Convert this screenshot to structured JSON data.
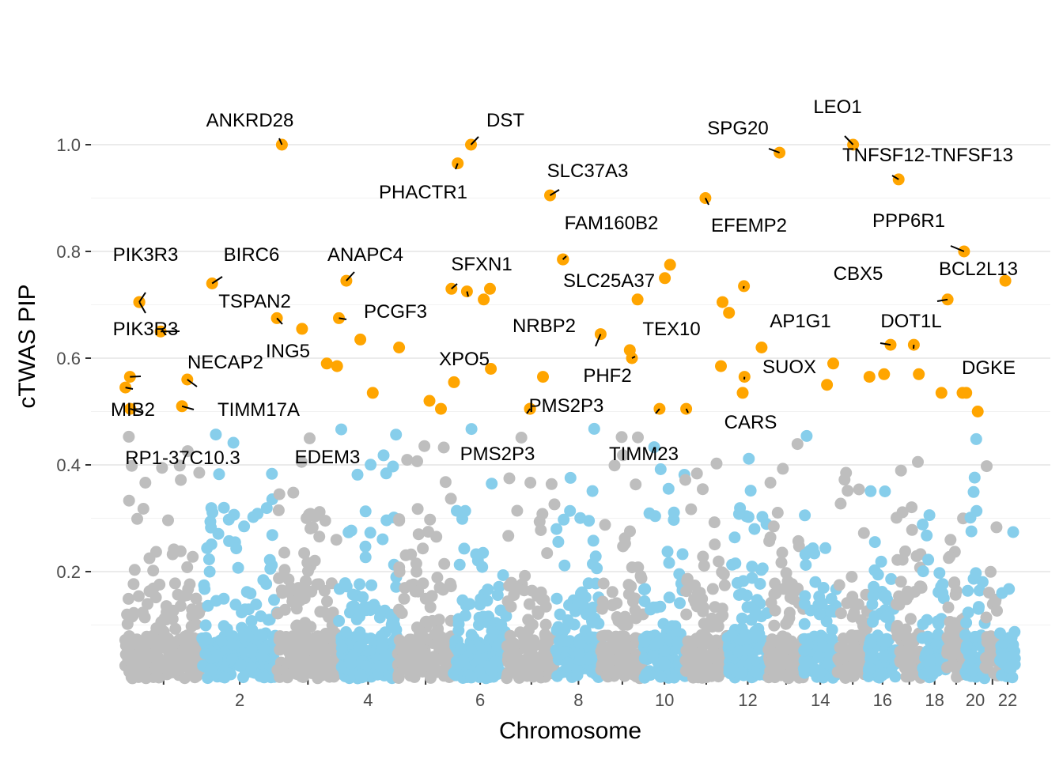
{
  "chart_data": {
    "type": "scatter",
    "title": "",
    "xlabel": "Chromosome",
    "ylabel": "cTWAS PIP",
    "ylim": [
      0,
      1.05
    ],
    "yticks": [
      0.2,
      0.4,
      0.6,
      0.8,
      1.0
    ],
    "ytick_labels": [
      "0.2",
      "0.4",
      "0.6",
      "0.8",
      "1.0"
    ],
    "xlim": [
      0,
      3100
    ],
    "chromosome_lengths_mb": [
      249,
      242,
      198,
      190,
      181,
      171,
      159,
      145,
      138,
      134,
      135,
      133,
      114,
      107,
      102,
      90,
      83,
      80,
      59,
      64,
      47,
      51
    ],
    "xtick_labels": [
      "",
      "2",
      "",
      "4",
      "",
      "6",
      "",
      "8",
      "",
      "10",
      "",
      "12",
      "",
      "14",
      "",
      "16",
      "",
      "18",
      "",
      "20",
      "",
      "22"
    ],
    "colors": {
      "chrom_odd": "#bebebe",
      "chrom_even": "#87ceeb",
      "highlight": "#ffa500",
      "grid": "#ebebeb"
    },
    "highlight_threshold": 0.5,
    "highlighted_genes": [
      {
        "gene": "ANKRD28",
        "chrom": 3,
        "pos": 15.0,
        "pip": 1.0
      },
      {
        "gene": "DST",
        "chrom": 6,
        "pos": 56.0,
        "pip": 1.0
      },
      {
        "gene": "PHACTR1",
        "chrom": 6,
        "pos": 13.0,
        "pip": 0.965
      },
      {
        "gene": "SLC37A3",
        "chrom": 7,
        "pos": 140.0,
        "pip": 0.905
      },
      {
        "gene": "SPG20",
        "chrom": 13,
        "pos": 36.0,
        "pip": 0.985
      },
      {
        "gene": "LEO1",
        "chrom": 15,
        "pos": 52.0,
        "pip": 1.0
      },
      {
        "gene": "TNFSF12-TNFSF13",
        "chrom": 17,
        "pos": 7.0,
        "pip": 0.935
      },
      {
        "gene": "EFEMP2",
        "chrom": 11,
        "pos": 65.0,
        "pip": 0.9
      },
      {
        "gene": "PPP6R1",
        "chrom": 19,
        "pos": 55.0,
        "pip": 0.8
      },
      {
        "gene": "BCL2L13",
        "chrom": 22,
        "pos": 18.0,
        "pip": 0.745
      },
      {
        "gene": "FAM160B2",
        "chrom": 8,
        "pos": 22.0,
        "pip": 0.785
      },
      {
        "gene": "SLC25A37",
        "chrom": 8,
        "pos": 23.0,
        "pip": 0.785
      },
      {
        "gene": "PIK3R3",
        "chrom": 1,
        "pos": 46.0,
        "pip": 0.705
      },
      {
        "gene": "PIK3R3",
        "chrom": 1,
        "pos": 46.5,
        "pip": 0.705
      },
      {
        "gene": "BIRC6",
        "chrom": 2,
        "pos": 32.0,
        "pip": 0.74
      },
      {
        "gene": "TSPAN2",
        "chrom": 1,
        "pos": 115.0,
        "pip": 0.65
      },
      {
        "gene": "ANAPC4",
        "chrom": 4,
        "pos": 25.0,
        "pip": 0.745
      },
      {
        "gene": "PCGF3",
        "chrom": 4,
        "pos": 1.0,
        "pip": 0.675
      },
      {
        "gene": "ING5",
        "chrom": 2,
        "pos": 241.0,
        "pip": 0.675
      },
      {
        "gene": "SFXN1",
        "chrom": 5,
        "pos": 174.0,
        "pip": 0.73
      },
      {
        "gene": "XPO5",
        "chrom": 6,
        "pos": 43.0,
        "pip": 0.725
      },
      {
        "gene": "NRBP2",
        "chrom": 8,
        "pos": 144.0,
        "pip": 0.645
      },
      {
        "gene": "TEX10",
        "chrom": 9,
        "pos": 100.0,
        "pip": 0.6
      },
      {
        "gene": "PHF2",
        "chrom": 9,
        "pos": 93.0,
        "pip": 0.615
      },
      {
        "gene": "CBX5",
        "chrom": 12,
        "pos": 54.0,
        "pip": 0.735
      },
      {
        "gene": "AP1G1",
        "chrom": 16,
        "pos": 71.0,
        "pip": 0.625
      },
      {
        "gene": "DOT1L",
        "chrom": 19,
        "pos": 2.0,
        "pip": 0.71
      },
      {
        "gene": "DGKE",
        "chrom": 17,
        "pos": 56.0,
        "pip": 0.625
      },
      {
        "gene": "SUOX",
        "chrom": 12,
        "pos": 56.0,
        "pip": 0.565
      },
      {
        "gene": "NECAP2",
        "chrom": 1,
        "pos": 16.0,
        "pip": 0.565
      },
      {
        "gene": "MIB2",
        "chrom": 1,
        "pos": 1.5,
        "pip": 0.545
      },
      {
        "gene": "RP1-37C10.3",
        "chrom": 1,
        "pos": 17.0,
        "pip": 0.505
      },
      {
        "gene": "TIMM17A",
        "chrom": 1,
        "pos": 201.0,
        "pip": 0.56
      },
      {
        "gene": "EDEM3",
        "chrom": 1,
        "pos": 184.0,
        "pip": 0.51
      },
      {
        "gene": "PMS2P3",
        "chrom": 7,
        "pos": 75.0,
        "pip": 0.505
      },
      {
        "gene": "PMS2P3",
        "chrom": 7,
        "pos": 75.5,
        "pip": 0.505
      },
      {
        "gene": "TIMM23",
        "chrom": 10,
        "pos": 51.0,
        "pip": 0.505
      },
      {
        "gene": "CARS",
        "chrom": 11,
        "pos": 3.0,
        "pip": 0.505
      }
    ],
    "gene_labels": [
      "ANKRD28",
      "DST",
      "PHACTR1",
      "SLC37A3",
      "SPG20",
      "LEO1",
      "TNFSF12-TNFSF13",
      "EFEMP2",
      "PPP6R1",
      "BCL2L13",
      "FAM160B2",
      "SLC25A37",
      "PIK3R3",
      "PIK3R3",
      "BIRC6",
      "TSPAN2",
      "ANAPC4",
      "PCGF3",
      "ING5",
      "SFXN1",
      "XPO5",
      "NRBP2",
      "TEX10",
      "PHF2",
      "CBX5",
      "AP1G1",
      "DOT1L",
      "DGKE",
      "SUOX",
      "NECAP2",
      "MIB2",
      "RP1-37C10.3",
      "TIMM17A",
      "EDEM3",
      "PMS2P3",
      "PMS2P3",
      "TIMM23",
      "CARS"
    ],
    "other_highlighted_points": [
      {
        "chrom": 3,
        "pos": 80.0,
        "pip": 0.655
      },
      {
        "chrom": 3,
        "pos": 160.0,
        "pip": 0.59
      },
      {
        "chrom": 3,
        "pos": 193.0,
        "pip": 0.585
      },
      {
        "chrom": 4,
        "pos": 70.0,
        "pip": 0.635
      },
      {
        "chrom": 4,
        "pos": 110.0,
        "pip": 0.535
      },
      {
        "chrom": 5,
        "pos": 5.0,
        "pip": 0.62
      },
      {
        "chrom": 5,
        "pos": 103.0,
        "pip": 0.52
      },
      {
        "chrom": 5,
        "pos": 140.0,
        "pip": 0.505
      },
      {
        "chrom": 6,
        "pos": 1.0,
        "pip": 0.555
      },
      {
        "chrom": 6,
        "pos": 97.0,
        "pip": 0.71
      },
      {
        "chrom": 6,
        "pos": 117.0,
        "pip": 0.73
      },
      {
        "chrom": 6,
        "pos": 120.0,
        "pip": 0.58
      },
      {
        "chrom": 7,
        "pos": 117.0,
        "pip": 0.565
      },
      {
        "chrom": 9,
        "pos": 118.0,
        "pip": 0.71
      },
      {
        "chrom": 10,
        "pos": 68.0,
        "pip": 0.75
      },
      {
        "chrom": 10,
        "pos": 85.0,
        "pip": 0.775
      },
      {
        "chrom": 11,
        "pos": 120.0,
        "pip": 0.705
      },
      {
        "chrom": 12,
        "pos": 6.0,
        "pip": 0.685
      },
      {
        "chrom": 11,
        "pos": 115.0,
        "pip": 0.585
      },
      {
        "chrom": 12,
        "pos": 50.0,
        "pip": 0.535
      },
      {
        "chrom": 12,
        "pos": 111.0,
        "pip": 0.62
      },
      {
        "chrom": 14,
        "pos": 75.0,
        "pip": 0.55
      },
      {
        "chrom": 14,
        "pos": 95.0,
        "pip": 0.59
      },
      {
        "chrom": 16,
        "pos": 3.0,
        "pip": 0.565
      },
      {
        "chrom": 16,
        "pos": 50.0,
        "pip": 0.57
      },
      {
        "chrom": 17,
        "pos": 72.0,
        "pip": 0.57
      },
      {
        "chrom": 18,
        "pos": 62.0,
        "pip": 0.535
      },
      {
        "chrom": 19,
        "pos": 50.0,
        "pip": 0.535
      },
      {
        "chrom": 20,
        "pos": 3.0,
        "pip": 0.535
      },
      {
        "chrom": 20,
        "pos": 40.0,
        "pip": 0.5
      }
    ]
  }
}
